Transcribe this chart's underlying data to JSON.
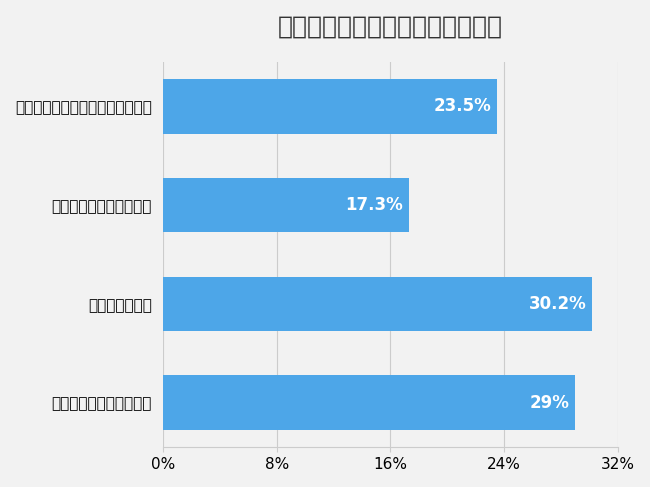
{
  "title": "副業する上で気になることは何か",
  "categories": [
    "本業との両立ができるか",
    "税金や確定申告",
    "どうやって仕事をとるか",
    "どうやってスキルを身に付けるか"
  ],
  "values": [
    29.0,
    30.2,
    17.3,
    23.5
  ],
  "labels": [
    "29%",
    "30.2%",
    "17.3%",
    "23.5%"
  ],
  "bar_color": "#4DA6E8",
  "xlim": [
    0,
    32
  ],
  "xticks": [
    0,
    8,
    16,
    24,
    32
  ],
  "xticklabels": [
    "0%",
    "8%",
    "16%",
    "24%",
    "32%"
  ],
  "background_color": "#f2f2f2",
  "title_fontsize": 18,
  "label_fontsize": 11,
  "tick_fontsize": 11,
  "bar_label_fontsize": 12
}
